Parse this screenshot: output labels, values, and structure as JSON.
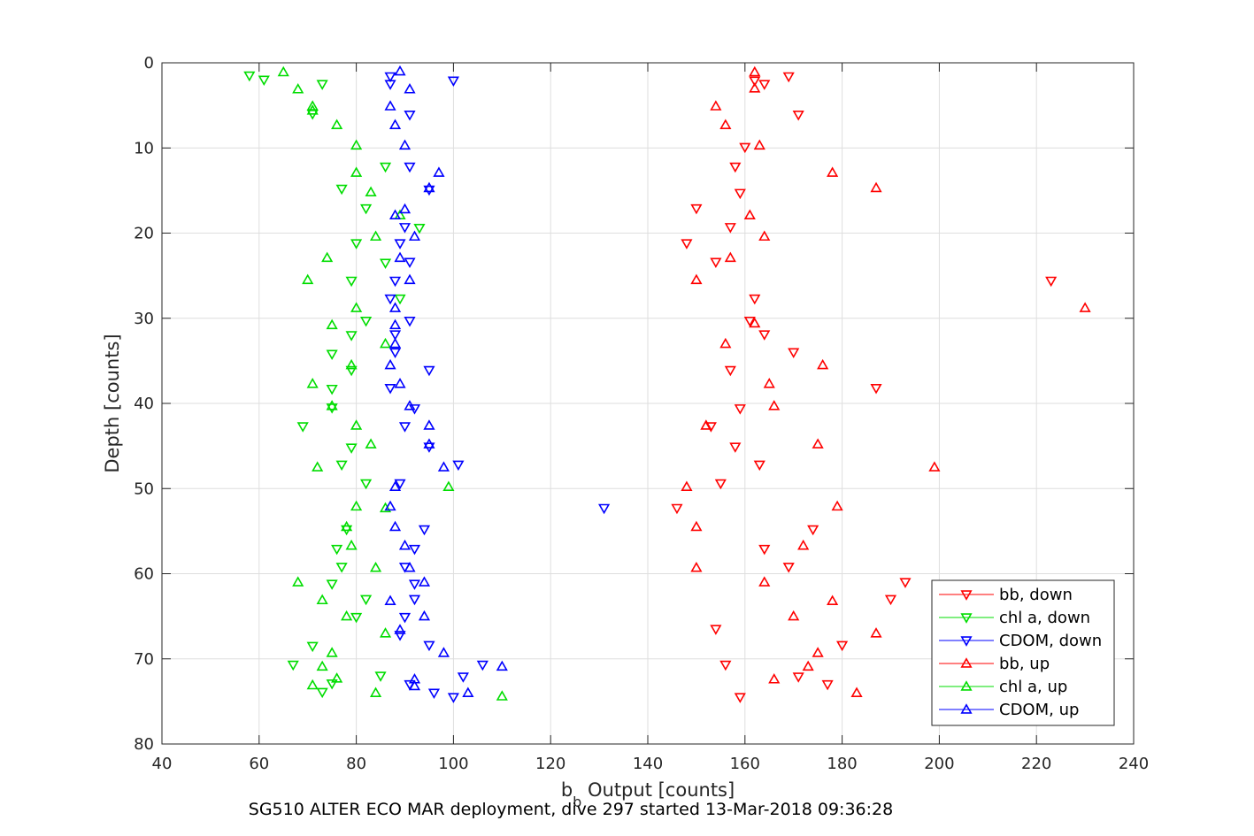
{
  "chart_data": {
    "type": "scatter",
    "xlabel": {
      "main": "b",
      "sub": "b",
      "rest": " Output [counts]"
    },
    "ylabel": "Depth [counts]",
    "xlim": [
      40,
      240
    ],
    "ylim": [
      0,
      80
    ],
    "y_reversed": true,
    "xticks": [
      40,
      60,
      80,
      100,
      120,
      140,
      160,
      180,
      200,
      220,
      240
    ],
    "yticks": [
      0,
      10,
      20,
      30,
      40,
      50,
      60,
      70,
      80
    ],
    "grid": true,
    "legend_position": "lower-right",
    "series": [
      {
        "name": "bb, down",
        "color": "#ff0000",
        "marker": "triangle-down",
        "points": [
          [
            169,
            1.6
          ],
          [
            162,
            2.1
          ],
          [
            164,
            2.5
          ],
          [
            171,
            6.1
          ],
          [
            160,
            9.9
          ],
          [
            158,
            12.2
          ],
          [
            159,
            15.3
          ],
          [
            150,
            17.1
          ],
          [
            157,
            19.3
          ],
          [
            148,
            21.2
          ],
          [
            154,
            23.4
          ],
          [
            223,
            25.6
          ],
          [
            162,
            27.7
          ],
          [
            161,
            30.3
          ],
          [
            164,
            31.9
          ],
          [
            170,
            34.0
          ],
          [
            157,
            36.1
          ],
          [
            187,
            38.2
          ],
          [
            159,
            40.6
          ],
          [
            153,
            42.7
          ],
          [
            158,
            45.1
          ],
          [
            163,
            47.2
          ],
          [
            155,
            49.4
          ],
          [
            146,
            52.3
          ],
          [
            174,
            54.8
          ],
          [
            164,
            57.1
          ],
          [
            169,
            59.2
          ],
          [
            193,
            61.0
          ],
          [
            190,
            63.0
          ],
          [
            154,
            66.5
          ],
          [
            180,
            68.4
          ],
          [
            156,
            70.7
          ],
          [
            171,
            72.1
          ],
          [
            177,
            73.0
          ],
          [
            159,
            74.5
          ]
        ]
      },
      {
        "name": "chl a, down",
        "color": "#00dd00",
        "marker": "triangle-down",
        "points": [
          [
            58,
            1.5
          ],
          [
            61,
            2.0
          ],
          [
            73,
            2.5
          ],
          [
            71,
            6.0
          ],
          [
            86,
            12.2
          ],
          [
            77,
            14.8
          ],
          [
            82,
            17.1
          ],
          [
            93,
            19.4
          ],
          [
            80,
            21.2
          ],
          [
            86,
            23.5
          ],
          [
            79,
            25.6
          ],
          [
            89,
            27.7
          ],
          [
            82,
            30.3
          ],
          [
            79,
            32.0
          ],
          [
            75,
            34.2
          ],
          [
            79,
            36.1
          ],
          [
            75,
            38.3
          ],
          [
            75,
            40.5
          ],
          [
            69,
            42.7
          ],
          [
            79,
            45.2
          ],
          [
            77,
            47.2
          ],
          [
            82,
            49.4
          ],
          [
            78,
            54.8
          ],
          [
            76,
            57.1
          ],
          [
            77,
            59.2
          ],
          [
            75,
            61.2
          ],
          [
            82,
            63.0
          ],
          [
            80,
            65.1
          ],
          [
            71,
            68.5
          ],
          [
            67,
            70.7
          ],
          [
            85,
            72.0
          ],
          [
            75,
            72.9
          ],
          [
            73,
            73.9
          ]
        ]
      },
      {
        "name": "CDOM, down",
        "color": "#0000ff",
        "marker": "triangle-down",
        "points": [
          [
            87,
            1.6
          ],
          [
            100,
            2.1
          ],
          [
            87,
            2.5
          ],
          [
            91,
            6.1
          ],
          [
            91,
            12.2
          ],
          [
            95,
            14.9
          ],
          [
            90,
            19.3
          ],
          [
            89,
            21.2
          ],
          [
            91,
            23.4
          ],
          [
            88,
            25.6
          ],
          [
            87,
            27.7
          ],
          [
            91,
            30.3
          ],
          [
            88,
            31.9
          ],
          [
            88,
            34.0
          ],
          [
            95,
            36.1
          ],
          [
            87,
            38.2
          ],
          [
            92,
            40.6
          ],
          [
            90,
            42.7
          ],
          [
            95,
            45.1
          ],
          [
            101,
            47.2
          ],
          [
            89,
            49.4
          ],
          [
            131,
            52.3
          ],
          [
            94,
            54.8
          ],
          [
            92,
            57.1
          ],
          [
            90,
            59.2
          ],
          [
            92,
            61.2
          ],
          [
            92,
            63.0
          ],
          [
            90,
            65.1
          ],
          [
            89,
            67.2
          ],
          [
            95,
            68.4
          ],
          [
            106,
            70.7
          ],
          [
            102,
            72.1
          ],
          [
            91,
            73.0
          ],
          [
            96,
            74.0
          ],
          [
            100,
            74.5
          ]
        ]
      },
      {
        "name": "bb, up",
        "color": "#ff0000",
        "marker": "triangle-up",
        "points": [
          [
            162,
            1.1
          ],
          [
            162,
            3.0
          ],
          [
            154,
            5.1
          ],
          [
            156,
            7.3
          ],
          [
            163,
            9.7
          ],
          [
            178,
            12.9
          ],
          [
            187,
            14.7
          ],
          [
            161,
            17.9
          ],
          [
            164,
            20.4
          ],
          [
            157,
            22.9
          ],
          [
            150,
            25.5
          ],
          [
            230,
            28.8
          ],
          [
            162,
            30.6
          ],
          [
            156,
            33.0
          ],
          [
            176,
            35.5
          ],
          [
            165,
            37.7
          ],
          [
            166,
            40.3
          ],
          [
            152,
            42.6
          ],
          [
            175,
            44.8
          ],
          [
            199,
            47.5
          ],
          [
            148,
            49.8
          ],
          [
            179,
            52.1
          ],
          [
            150,
            54.5
          ],
          [
            172,
            56.7
          ],
          [
            150,
            59.3
          ],
          [
            164,
            61.0
          ],
          [
            178,
            63.2
          ],
          [
            170,
            65.0
          ],
          [
            187,
            67.0
          ],
          [
            175,
            69.3
          ],
          [
            173,
            70.9
          ],
          [
            166,
            72.4
          ],
          [
            183,
            74.0
          ]
        ]
      },
      {
        "name": "chl a, up",
        "color": "#00dd00",
        "marker": "triangle-up",
        "points": [
          [
            65,
            1.1
          ],
          [
            68,
            3.1
          ],
          [
            71,
            5.1
          ],
          [
            71,
            5.6
          ],
          [
            76,
            7.3
          ],
          [
            80,
            9.7
          ],
          [
            80,
            12.9
          ],
          [
            83,
            15.2
          ],
          [
            89,
            17.9
          ],
          [
            84,
            20.4
          ],
          [
            74,
            22.9
          ],
          [
            70,
            25.5
          ],
          [
            80,
            28.8
          ],
          [
            75,
            30.8
          ],
          [
            86,
            33.0
          ],
          [
            79,
            35.5
          ],
          [
            71,
            37.7
          ],
          [
            75,
            40.3
          ],
          [
            80,
            42.6
          ],
          [
            83,
            44.8
          ],
          [
            72,
            47.5
          ],
          [
            99,
            49.8
          ],
          [
            80,
            52.1
          ],
          [
            86,
            52.3
          ],
          [
            78,
            54.5
          ],
          [
            79,
            56.7
          ],
          [
            84,
            59.3
          ],
          [
            68,
            61.0
          ],
          [
            73,
            63.1
          ],
          [
            78,
            65.0
          ],
          [
            86,
            67.0
          ],
          [
            75,
            69.3
          ],
          [
            73,
            70.9
          ],
          [
            76,
            72.3
          ],
          [
            71,
            73.1
          ],
          [
            84,
            74.0
          ],
          [
            110,
            74.4
          ]
        ]
      },
      {
        "name": "CDOM, up",
        "color": "#0000ff",
        "marker": "triangle-up",
        "points": [
          [
            89,
            1.0
          ],
          [
            91,
            3.1
          ],
          [
            87,
            5.1
          ],
          [
            88,
            7.3
          ],
          [
            90,
            9.7
          ],
          [
            97,
            12.9
          ],
          [
            95,
            14.7
          ],
          [
            90,
            17.2
          ],
          [
            88,
            17.9
          ],
          [
            92,
            20.4
          ],
          [
            89,
            22.9
          ],
          [
            91,
            25.5
          ],
          [
            88,
            28.8
          ],
          [
            88,
            30.8
          ],
          [
            88,
            33.0
          ],
          [
            87,
            35.5
          ],
          [
            89,
            37.7
          ],
          [
            91,
            40.3
          ],
          [
            95,
            42.6
          ],
          [
            95,
            44.8
          ],
          [
            98,
            47.5
          ],
          [
            88,
            49.8
          ],
          [
            87,
            52.1
          ],
          [
            88,
            54.5
          ],
          [
            90,
            56.7
          ],
          [
            91,
            59.3
          ],
          [
            94,
            61.0
          ],
          [
            87,
            63.2
          ],
          [
            94,
            65.0
          ],
          [
            89,
            66.6
          ],
          [
            98,
            69.3
          ],
          [
            110,
            70.9
          ],
          [
            92,
            72.4
          ],
          [
            92,
            73.2
          ],
          [
            103,
            74.0
          ]
        ]
      }
    ]
  },
  "caption": "SG510 ALTER ECO MAR deployment, dive 297 started 13-Mar-2018 09:36:28"
}
